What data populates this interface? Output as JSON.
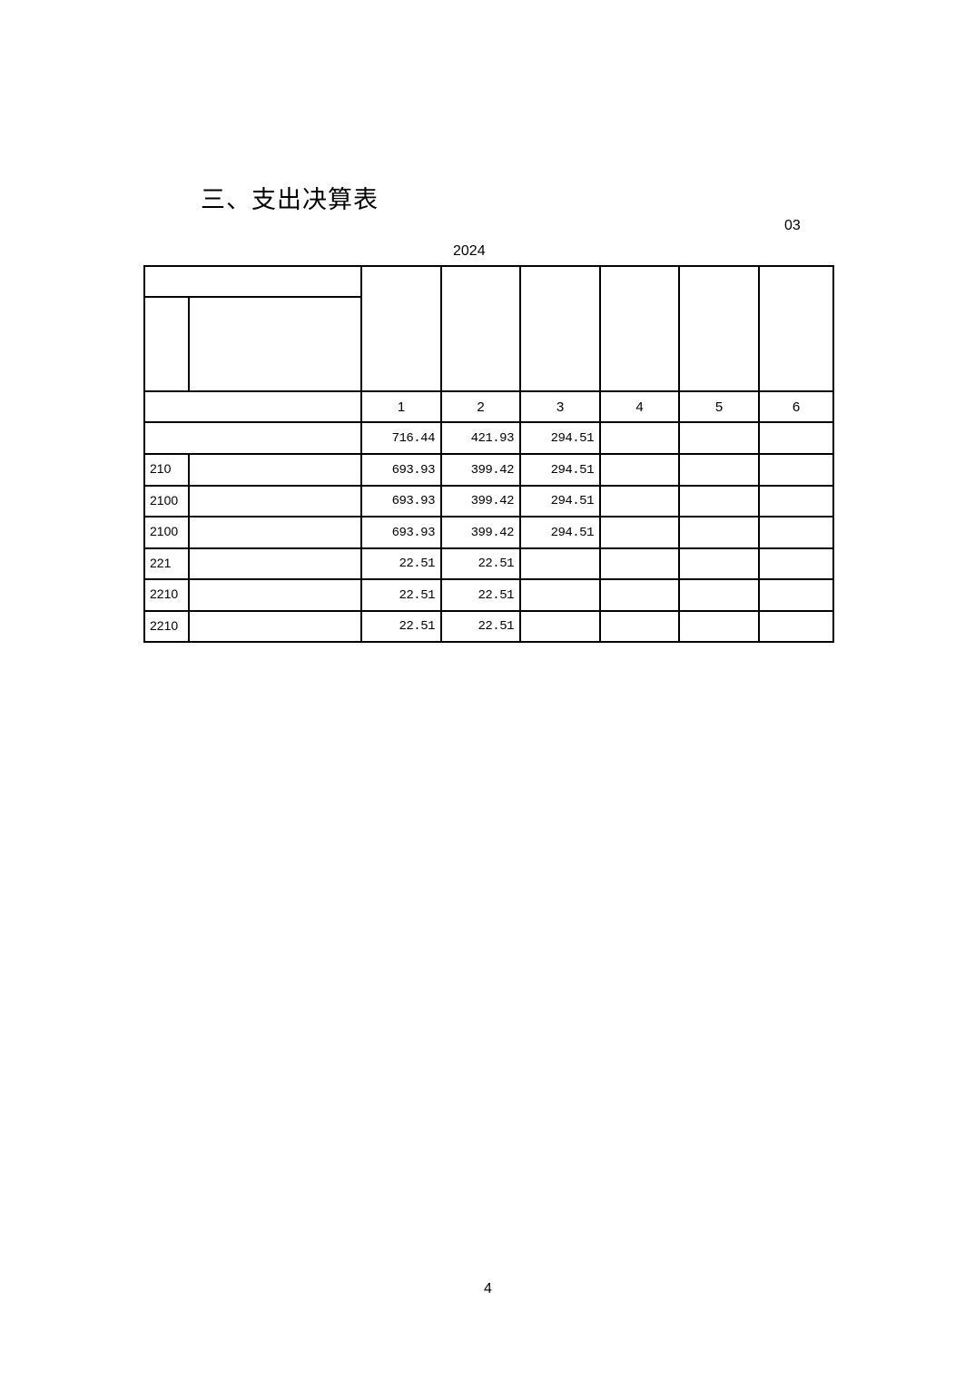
{
  "title": "三、支出决算表",
  "unit_label": "03",
  "year_label": "2024",
  "column_indices": [
    "1",
    "2",
    "3",
    "4",
    "5",
    "6"
  ],
  "total_row": {
    "values": [
      "716.44",
      "421.93",
      "294.51",
      "",
      "",
      ""
    ]
  },
  "rows": [
    {
      "code": "210",
      "values": [
        "693.93",
        "399.42",
        "294.51",
        "",
        "",
        ""
      ]
    },
    {
      "code": "2100",
      "values": [
        "693.93",
        "399.42",
        "294.51",
        "",
        "",
        ""
      ]
    },
    {
      "code": "2100",
      "values": [
        "693.93",
        "399.42",
        "294.51",
        "",
        "",
        ""
      ]
    },
    {
      "code": "221",
      "values": [
        "22.51",
        "22.51",
        "",
        "",
        "",
        ""
      ]
    },
    {
      "code": "2210",
      "values": [
        "22.51",
        "22.51",
        "",
        "",
        "",
        ""
      ]
    },
    {
      "code": "2210",
      "values": [
        "22.51",
        "22.51",
        "",
        "",
        "",
        ""
      ]
    }
  ],
  "page_number": "4"
}
